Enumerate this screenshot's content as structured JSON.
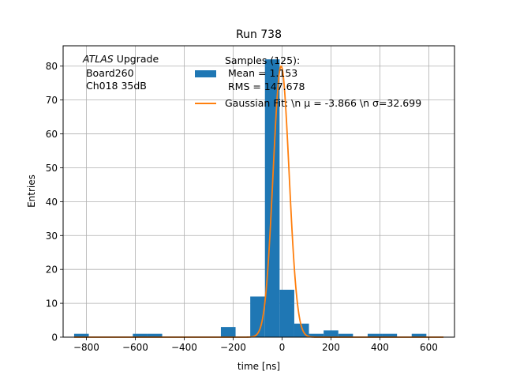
{
  "chart_data": {
    "type": "bar",
    "title": "Run 738",
    "xlabel": "time [ns]",
    "ylabel": "Entries",
    "xlim": [
      -895,
      705
    ],
    "ylim": [
      0,
      86
    ],
    "grid": true,
    "x_ticks": [
      -800,
      -600,
      -400,
      -200,
      0,
      200,
      400,
      600
    ],
    "y_ticks": [
      0,
      10,
      20,
      30,
      40,
      50,
      60,
      70,
      80
    ],
    "annotation": {
      "italic": "ATLAS",
      "rest": " Upgrade",
      "line2": " Board260",
      "line3": " Ch018 35dB"
    },
    "legend": {
      "placement": "upper-right",
      "histogram": {
        "line1": "Samples (125):",
        "line2": " Mean = 1.153",
        "line3": " RMS = 147.678",
        "color": "#1f77b4"
      },
      "fit": {
        "label": "Gaussian Fit: \\n μ = -3.866 \\n σ=32.699",
        "color": "#ff7f0e"
      }
    },
    "histogram": {
      "bin_start": -850,
      "bin_width": 60,
      "counts": [
        1,
        0,
        0,
        0,
        1,
        1,
        0,
        0,
        0,
        0,
        3,
        0,
        12,
        82,
        14,
        4,
        1,
        2,
        1,
        0,
        1,
        1,
        0,
        1
      ]
    },
    "gaussian_fit": {
      "amplitude": 80,
      "mu": -3.866,
      "sigma": 32.699,
      "x_range": [
        -850,
        660
      ]
    }
  }
}
